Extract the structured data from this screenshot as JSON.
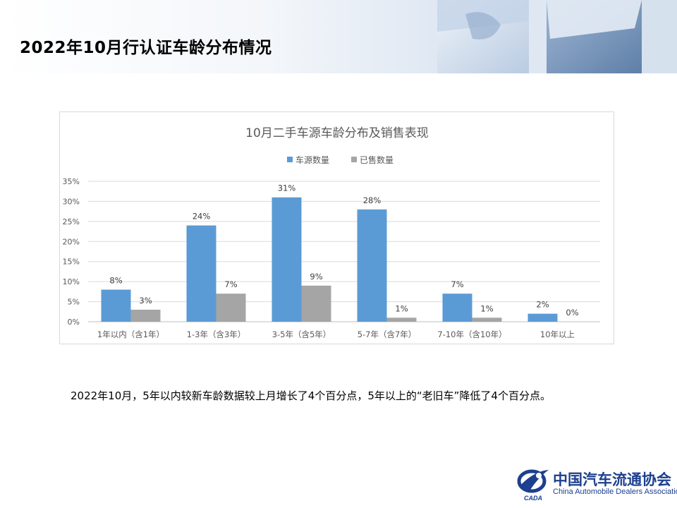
{
  "page": {
    "title": "2022年10月行认证车龄分布情况",
    "description": "2022年10月，5年以内较新车龄数据较上月增长了4个百分点，5年以上的“老旧车”降低了4个百分点。"
  },
  "logo": {
    "name_cn": "中国汽车流通协会",
    "name_en": "China Automobile Dealers Association",
    "mark_text": "CADA"
  },
  "colors": {
    "series_blue": "#5b9bd5",
    "series_gray": "#a5a5a5",
    "brand": "#1d3f8f"
  },
  "chart_data": {
    "type": "bar",
    "title": "10月二手车源车龄分布及销售表现",
    "categories": [
      "1年以内（含1年）",
      "1-3年（含3年）",
      "3-5年（含5年）",
      "5-7年（含7年）",
      "7-10年（含10年）",
      "10年以上"
    ],
    "series": [
      {
        "name": "车源数量",
        "values": [
          8,
          24,
          31,
          28,
          7,
          2
        ],
        "labels": [
          "8%",
          "24%",
          "31%",
          "28%",
          "7%",
          "2%"
        ]
      },
      {
        "name": "已售数量",
        "values": [
          3,
          7,
          9,
          1,
          1,
          0
        ],
        "labels": [
          "3%",
          "7%",
          "9%",
          "1%",
          "1%",
          "0%"
        ]
      }
    ],
    "yticks": [
      "0%",
      "5%",
      "10%",
      "15%",
      "20%",
      "25%",
      "30%",
      "35%"
    ],
    "ylim": [
      0,
      35
    ],
    "legend_position": "top",
    "grid": true
  }
}
